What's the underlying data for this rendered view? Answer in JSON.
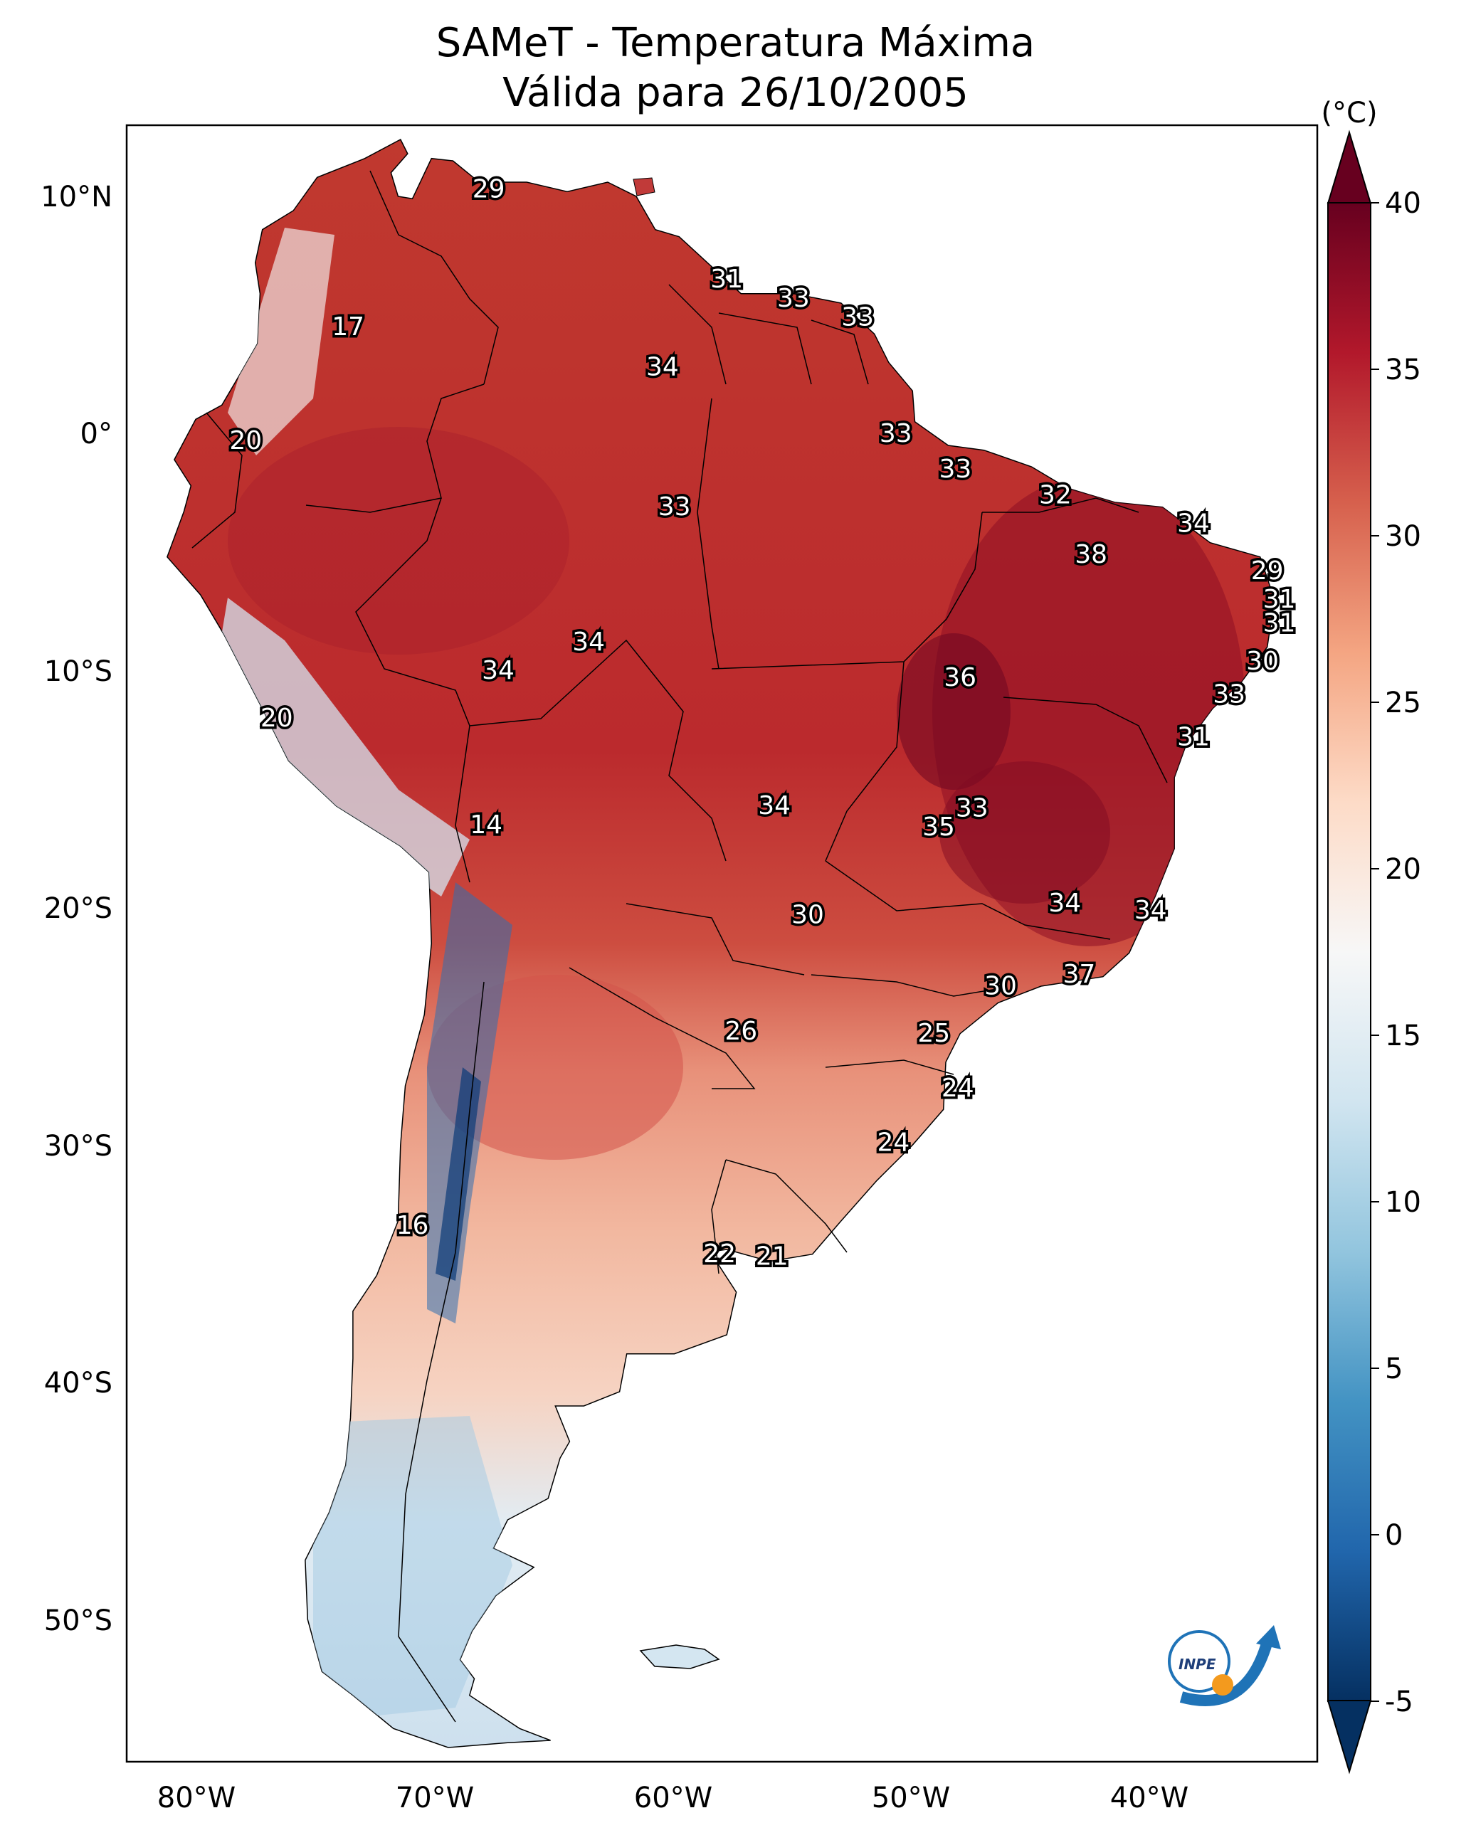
{
  "title": {
    "line1": "SAMeT - Temperatura Máxima",
    "line2": "Válida para 26/10/2005"
  },
  "map": {
    "region": "South America",
    "lon_range": [
      -83,
      -33
    ],
    "lat_range": [
      -56,
      13
    ],
    "lon_ticks": [
      "80°W",
      "70°W",
      "60°W",
      "50°W",
      "40°W"
    ],
    "lat_ticks": [
      "10°N",
      "0°",
      "10°S",
      "20°S",
      "30°S",
      "40°S",
      "50°S"
    ]
  },
  "colorbar": {
    "unit": "(°C)",
    "range": [
      -5,
      40
    ],
    "ticks": [
      "40",
      "35",
      "30",
      "25",
      "20",
      "15",
      "10",
      "5",
      "0",
      "-5"
    ],
    "colormap": "RdBu_r",
    "colors": [
      "#053061",
      "#2166ac",
      "#4393c3",
      "#92c5de",
      "#d1e5f0",
      "#f7f7f7",
      "#fddbc7",
      "#f4a582",
      "#d6604d",
      "#b2182b",
      "#67001f"
    ]
  },
  "labels": [
    {
      "value": "29",
      "lon": -67.8,
      "lat": 10.3
    },
    {
      "value": "17",
      "lon": -73.7,
      "lat": 4.5
    },
    {
      "value": "31",
      "lon": -57.8,
      "lat": 6.5
    },
    {
      "value": "33",
      "lon": -55.0,
      "lat": 5.7
    },
    {
      "value": "33",
      "lon": -52.3,
      "lat": 4.9
    },
    {
      "value": "34",
      "lon": -60.5,
      "lat": 2.8
    },
    {
      "value": "20",
      "lon": -78.0,
      "lat": -0.3
    },
    {
      "value": "33",
      "lon": -50.7,
      "lat": 0.0
    },
    {
      "value": "33",
      "lon": -48.2,
      "lat": -1.5
    },
    {
      "value": "32",
      "lon": -44.0,
      "lat": -2.6
    },
    {
      "value": "33",
      "lon": -60.0,
      "lat": -3.1
    },
    {
      "value": "34",
      "lon": -38.2,
      "lat": -3.8
    },
    {
      "value": "38",
      "lon": -42.5,
      "lat": -5.1
    },
    {
      "value": "29",
      "lon": -35.1,
      "lat": -5.8
    },
    {
      "value": "31",
      "lon": -34.6,
      "lat": -7.0
    },
    {
      "value": "31",
      "lon": -34.6,
      "lat": -8.0
    },
    {
      "value": "34",
      "lon": -63.6,
      "lat": -8.8
    },
    {
      "value": "34",
      "lon": -67.4,
      "lat": -10.0
    },
    {
      "value": "36",
      "lon": -48.0,
      "lat": -10.3
    },
    {
      "value": "30",
      "lon": -35.3,
      "lat": -9.6
    },
    {
      "value": "33",
      "lon": -36.7,
      "lat": -11.0
    },
    {
      "value": "20",
      "lon": -76.7,
      "lat": -12.0
    },
    {
      "value": "31",
      "lon": -38.2,
      "lat": -12.8
    },
    {
      "value": "14",
      "lon": -67.9,
      "lat": -16.5
    },
    {
      "value": "34",
      "lon": -55.8,
      "lat": -15.7
    },
    {
      "value": "33",
      "lon": -47.5,
      "lat": -15.8
    },
    {
      "value": "35",
      "lon": -48.9,
      "lat": -16.6
    },
    {
      "value": "34",
      "lon": -43.6,
      "lat": -19.8
    },
    {
      "value": "34",
      "lon": -40.0,
      "lat": -20.1
    },
    {
      "value": "30",
      "lon": -54.4,
      "lat": -20.3
    },
    {
      "value": "37",
      "lon": -43.0,
      "lat": -22.8
    },
    {
      "value": "30",
      "lon": -46.3,
      "lat": -23.3
    },
    {
      "value": "26",
      "lon": -57.2,
      "lat": -25.2
    },
    {
      "value": "25",
      "lon": -49.1,
      "lat": -25.3
    },
    {
      "value": "24",
      "lon": -48.1,
      "lat": -27.6
    },
    {
      "value": "24",
      "lon": -50.8,
      "lat": -29.9
    },
    {
      "value": "16",
      "lon": -71.0,
      "lat": -33.4
    },
    {
      "value": "22",
      "lon": -58.1,
      "lat": -34.6
    },
    {
      "value": "21",
      "lon": -55.9,
      "lat": -34.7
    }
  ]
}
